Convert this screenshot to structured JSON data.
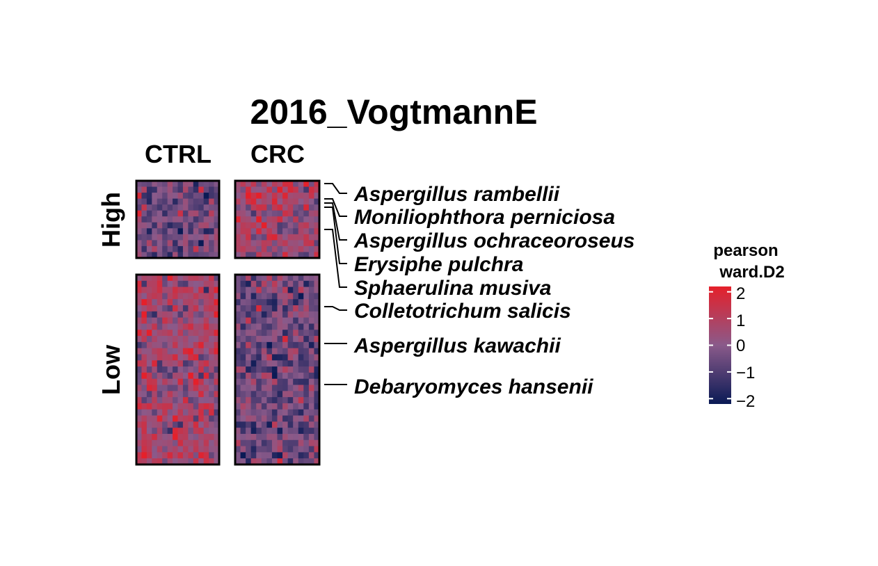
{
  "chart_data": {
    "type": "heatmap",
    "title": "2016_VogtmannE",
    "column_groups": [
      "CTRL",
      "CRC"
    ],
    "row_groups": [
      "High",
      "Low"
    ],
    "row_annotations": [
      {
        "label": "Aspergillus rambellii",
        "group": "High"
      },
      {
        "label": "Moniliophthora perniciosa",
        "group": "High"
      },
      {
        "label": "Aspergillus ochraceoroseus",
        "group": "High"
      },
      {
        "label": "Erysiphe pulchra",
        "group": "High"
      },
      {
        "label": "Sphaerulina musiva",
        "group": "High"
      },
      {
        "label": "Colletotrichum salicis",
        "group": "Low"
      },
      {
        "label": "Aspergillus kawachii",
        "group": "Low"
      },
      {
        "label": "Debaryomyces hansenii",
        "group": "Low"
      }
    ],
    "legend": {
      "title_lines": [
        "pearson",
        "ward.D2"
      ],
      "ticks": [
        2,
        1,
        0,
        -1,
        -2
      ],
      "tick_labels": [
        "2",
        "1",
        "0",
        "−1",
        "−2"
      ],
      "range": [
        -2.2,
        2.2
      ],
      "colors": {
        "low": "#0a1a55",
        "mid": "#8a5a8a",
        "high": "#e5202a"
      },
      "placement": "right"
    },
    "matrix_summary": {
      "rows_high": 13,
      "rows_low": 31,
      "cols_ctrl": 16,
      "cols_crc": 16,
      "tendency": {
        "High": {
          "CTRL": -0.4,
          "CRC": 0.6
        },
        "Low": {
          "CTRL": 0.55,
          "CRC": -0.45
        }
      }
    }
  }
}
